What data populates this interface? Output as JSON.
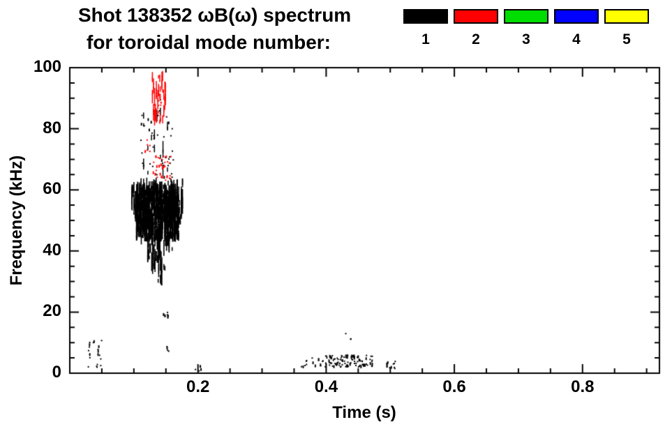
{
  "chart_data": {
    "type": "scatter",
    "title": "Shot 138352 ωB(ω) spectrum",
    "subtitle": "for toroidal mode number:",
    "xlabel": "Time (s)",
    "ylabel": "Frequency (kHz)",
    "xlim": [
      0,
      0.92
    ],
    "ylim": [
      0,
      100
    ],
    "xticks": [
      0.2,
      0.4,
      0.6,
      0.8
    ],
    "yticks": [
      0,
      20,
      40,
      60,
      80,
      100
    ],
    "x_minor_step": 0.05,
    "y_minor_step": 5,
    "grid": false,
    "legend_position": "top-right",
    "frame_color": "#000000",
    "background_color": "#ffffff",
    "legend": [
      {
        "label": "1",
        "color": "#000000"
      },
      {
        "label": "2",
        "color": "#ff0000"
      },
      {
        "label": "3",
        "color": "#00dd00"
      },
      {
        "label": "4",
        "color": "#0000ff"
      },
      {
        "label": "5",
        "color": "#ffff00"
      }
    ],
    "series": [
      {
        "name": "1",
        "color": "#000000",
        "clusters": [
          {
            "shape": "vstreaks",
            "t": [
              0.096,
              0.176
            ],
            "f": [
              22,
              64
            ],
            "columns": 60,
            "per": [
              3,
              12
            ],
            "seglen": [
              0.8,
              7
            ],
            "taper": true,
            "w": 1.6
          },
          {
            "shape": "vstreaks",
            "t": [
              0.102,
              0.17
            ],
            "f": [
              43,
              62
            ],
            "columns": 45,
            "per": [
              5,
              14
            ],
            "seglen": [
              0.8,
              4
            ],
            "w": 2
          },
          {
            "shape": "dots",
            "t": [
              0.104,
              0.168
            ],
            "f": [
              54,
              60
            ],
            "count": 300,
            "size": 2
          },
          {
            "shape": "dots",
            "t": [
              0.11,
              0.162
            ],
            "f": [
              64,
              91
            ],
            "count": 40,
            "size": 2
          },
          {
            "shape": "vstreaks",
            "t": [
              0.112,
              0.155
            ],
            "f": [
              64,
              88
            ],
            "columns": 8,
            "per": [
              1,
              3
            ],
            "seglen": [
              1,
              4
            ],
            "w": 1.5
          },
          {
            "shape": "dots",
            "t": [
              0.028,
              0.05
            ],
            "f": [
              1,
              13
            ],
            "count": 20,
            "size": 2
          },
          {
            "shape": "dots",
            "t": [
              0.146,
              0.157
            ],
            "f": [
              18,
              21
            ],
            "count": 7,
            "size": 2
          },
          {
            "shape": "dots",
            "t": [
              0.196,
              0.206
            ],
            "f": [
              0.5,
              2.5
            ],
            "count": 4,
            "size": 2
          },
          {
            "shape": "dots",
            "t": [
              0.36,
              0.395
            ],
            "f": [
              2,
              5
            ],
            "count": 15,
            "size": 2
          },
          {
            "shape": "dots",
            "t": [
              0.398,
              0.472
            ],
            "f": [
              2,
              6
            ],
            "count": 110,
            "size": 2
          },
          {
            "shape": "dots",
            "t": [
              0.492,
              0.508
            ],
            "f": [
              1.5,
              4
            ],
            "count": 12,
            "size": 2
          },
          {
            "shape": "dots",
            "t": [
              0.43,
              0.442
            ],
            "f": [
              11,
              13
            ],
            "count": 3,
            "size": 2
          },
          {
            "shape": "dots",
            "t": [
              0.15,
              0.16
            ],
            "f": [
              7,
              10
            ],
            "count": 4,
            "size": 2
          }
        ]
      },
      {
        "name": "2",
        "color": "#ff0000",
        "clusters": [
          {
            "shape": "vstreaks",
            "t": [
              0.127,
              0.15
            ],
            "f": [
              81,
              99
            ],
            "columns": 14,
            "per": [
              2,
              5
            ],
            "seglen": [
              1,
              4
            ],
            "w": 1.5
          },
          {
            "shape": "dots",
            "t": [
              0.129,
              0.158
            ],
            "f": [
              63,
              72
            ],
            "count": 34,
            "size": 2
          },
          {
            "shape": "dots",
            "t": [
              0.117,
              0.126
            ],
            "f": [
              72,
              77
            ],
            "count": 6,
            "size": 2
          },
          {
            "shape": "dots",
            "t": [
              0.131,
              0.145
            ],
            "f": [
              84,
              90
            ],
            "count": 8,
            "size": 2
          }
        ]
      },
      {
        "name": "3",
        "color": "#00dd00",
        "clusters": []
      },
      {
        "name": "4",
        "color": "#0000ff",
        "clusters": []
      },
      {
        "name": "5",
        "color": "#ffff00",
        "clusters": []
      }
    ]
  }
}
